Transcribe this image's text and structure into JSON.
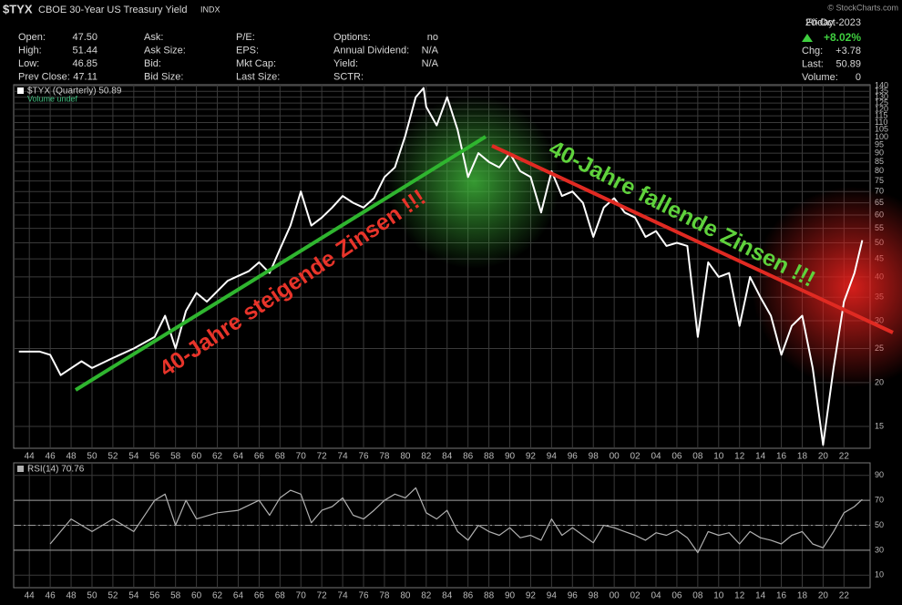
{
  "header": {
    "symbol": "$TYX",
    "name": "CBOE 30-Year US Treasury Yield",
    "exchange": "INDX",
    "watermark": "© StockCharts.com"
  },
  "quote": {
    "columns": [
      [
        {
          "label": "Open:",
          "value": "47.50"
        },
        {
          "label": "High:",
          "value": "51.44"
        },
        {
          "label": "Low:",
          "value": "46.85"
        },
        {
          "label": "Prev Close:",
          "value": "47.11"
        }
      ],
      [
        {
          "label": "Ask:"
        },
        {
          "label": "Ask Size:"
        },
        {
          "label": "Bid:"
        },
        {
          "label": "Bid Size:"
        }
      ],
      [
        {
          "label": "P/E:"
        },
        {
          "label": "EPS:"
        },
        {
          "label": "Mkt Cap:"
        },
        {
          "label": "Last Size:"
        }
      ],
      [
        {
          "label": "Options:",
          "value": "no"
        },
        {
          "label": "Annual Dividend:",
          "value": "N/A"
        },
        {
          "label": "Yield:",
          "value": "N/A"
        },
        {
          "label": "SCTR:"
        }
      ]
    ],
    "day": "Friday",
    "date": "20-Oct-2023",
    "change_pct": "+8.02%",
    "stats": [
      {
        "label": "Chg:",
        "value": "+3.78"
      },
      {
        "label": "Last:",
        "value": "50.89"
      },
      {
        "label": "Volume:",
        "value": "0"
      }
    ]
  },
  "annotations": [
    {
      "text": "40-Jahre steigende Zinsen !!!",
      "color": "#e8342a"
    },
    {
      "text": "40-Jahre fallende Zinsen !!!",
      "color": "#5fd23c"
    }
  ],
  "chart_data": [
    {
      "type": "line",
      "yscale": "log",
      "grid": true,
      "volume_label": "Volume undef",
      "x": [
        1943,
        1945,
        1946,
        1947,
        1949,
        1950,
        1952,
        1954,
        1956,
        1957,
        1958,
        1959,
        1960,
        1961,
        1963,
        1965,
        1966,
        1967,
        1968,
        1969,
        1970,
        1971,
        1972,
        1973,
        1974,
        1975,
        1976,
        1977,
        1978,
        1979,
        1980,
        1981,
        1981.75,
        1982,
        1983,
        1984,
        1985,
        1986,
        1987,
        1988,
        1989,
        1990,
        1991,
        1992,
        1993,
        1994,
        1995,
        1996,
        1997,
        1998,
        1999,
        2000,
        2001,
        2002,
        2003,
        2004,
        2005,
        2006,
        2007,
        2008,
        2009,
        2010,
        2011,
        2012,
        2013,
        2014,
        2015,
        2016,
        2017,
        2018,
        2019,
        2020,
        2021,
        2022,
        2023,
        2023.75
      ],
      "series": [
        {
          "name": "$TYX (Quarterly) 50.89",
          "color": "#ffffff",
          "values": [
            24.5,
            24.5,
            24,
            21,
            23,
            22,
            23.5,
            25,
            27,
            31,
            25,
            32,
            36,
            34,
            39,
            41.5,
            44,
            41,
            48,
            56,
            70,
            56,
            59,
            63,
            68,
            65,
            63,
            67,
            77,
            82,
            101,
            130,
            138,
            122,
            108,
            130,
            105,
            77,
            90,
            85,
            82,
            90,
            80,
            77,
            61,
            80,
            68,
            70,
            65,
            52,
            63,
            67,
            61,
            59,
            52,
            54,
            49,
            50,
            49,
            27,
            44,
            40,
            41,
            29,
            40,
            35,
            31,
            24,
            29,
            31,
            22,
            13.3,
            22,
            34,
            41,
            50.89
          ]
        }
      ],
      "xlim": [
        1942.5,
        2024.5
      ],
      "xticks": [
        {
          "value": 1944,
          "label": "44"
        },
        {
          "value": 1946,
          "label": "46"
        },
        {
          "value": 1948,
          "label": "48"
        },
        {
          "value": 1950,
          "label": "50"
        },
        {
          "value": 1952,
          "label": "52"
        },
        {
          "value": 1954,
          "label": "54"
        },
        {
          "value": 1956,
          "label": "56"
        },
        {
          "value": 1958,
          "label": "58"
        },
        {
          "value": 1960,
          "label": "60"
        },
        {
          "value": 1962,
          "label": "62"
        },
        {
          "value": 1964,
          "label": "64"
        },
        {
          "value": 1966,
          "label": "66"
        },
        {
          "value": 1968,
          "label": "68"
        },
        {
          "value": 1970,
          "label": "70"
        },
        {
          "value": 1972,
          "label": "72"
        },
        {
          "value": 1974,
          "label": "74"
        },
        {
          "value": 1976,
          "label": "76"
        },
        {
          "value": 1978,
          "label": "78"
        },
        {
          "value": 1980,
          "label": "80"
        },
        {
          "value": 1982,
          "label": "82"
        },
        {
          "value": 1984,
          "label": "84"
        },
        {
          "value": 1986,
          "label": "86"
        },
        {
          "value": 1988,
          "label": "88"
        },
        {
          "value": 1990,
          "label": "90"
        },
        {
          "value": 1992,
          "label": "92"
        },
        {
          "value": 1994,
          "label": "94"
        },
        {
          "value": 1996,
          "label": "96"
        },
        {
          "value": 1998,
          "label": "98"
        },
        {
          "value": 2000,
          "label": "00"
        },
        {
          "value": 2002,
          "label": "02"
        },
        {
          "value": 2004,
          "label": "04"
        },
        {
          "value": 2006,
          "label": "06"
        },
        {
          "value": 2008,
          "label": "08"
        },
        {
          "value": 2010,
          "label": "10"
        },
        {
          "value": 2012,
          "label": "12"
        },
        {
          "value": 2014,
          "label": "14"
        },
        {
          "value": 2016,
          "label": "16"
        },
        {
          "value": 2018,
          "label": "18"
        },
        {
          "value": 2020,
          "label": "20"
        },
        {
          "value": 2022,
          "label": "22"
        }
      ],
      "ylim": [
        13,
        141
      ],
      "yticks": [
        15,
        20,
        25,
        30,
        35,
        40,
        45,
        50,
        55,
        60,
        65,
        70,
        75,
        80,
        85,
        90,
        95,
        100,
        105,
        110,
        115,
        120,
        125,
        130,
        135,
        140
      ]
    },
    {
      "type": "line",
      "grid": true,
      "x": [
        1946,
        1948,
        1950,
        1952,
        1954,
        1956,
        1957,
        1958,
        1959,
        1960,
        1962,
        1964,
        1966,
        1967,
        1968,
        1969,
        1970,
        1971,
        1972,
        1973,
        1974,
        1975,
        1976,
        1977,
        1978,
        1979,
        1980,
        1981,
        1982,
        1983,
        1984,
        1985,
        1986,
        1987,
        1988,
        1989,
        1990,
        1991,
        1992,
        1993,
        1994,
        1995,
        1996,
        1997,
        1998,
        1999,
        2000,
        2001,
        2002,
        2003,
        2004,
        2005,
        2006,
        2007,
        2008,
        2009,
        2010,
        2011,
        2012,
        2013,
        2014,
        2015,
        2016,
        2017,
        2018,
        2019,
        2020,
        2021,
        2022,
        2023,
        2023.75
      ],
      "series": [
        {
          "name": "RSI(14) 70.76",
          "color": "#b0b0b0",
          "values": [
            35,
            55,
            45,
            55,
            45,
            70,
            75,
            50,
            70,
            55,
            60,
            62,
            70,
            58,
            72,
            78,
            75,
            52,
            62,
            65,
            72,
            58,
            55,
            62,
            70,
            75,
            72,
            80,
            60,
            55,
            62,
            45,
            38,
            50,
            45,
            42,
            48,
            40,
            42,
            38,
            55,
            42,
            48,
            42,
            36,
            50,
            48,
            45,
            42,
            38,
            44,
            42,
            46,
            40,
            28,
            45,
            42,
            44,
            35,
            45,
            40,
            38,
            35,
            42,
            45,
            35,
            32,
            45,
            60,
            65,
            70.76
          ]
        }
      ],
      "levels": [
        30,
        50,
        70
      ],
      "xlim": [
        1942.5,
        2024.5
      ],
      "xticks": [
        {
          "value": 1944,
          "label": "44"
        },
        {
          "value": 1946,
          "label": "46"
        },
        {
          "value": 1948,
          "label": "48"
        },
        {
          "value": 1950,
          "label": "50"
        },
        {
          "value": 1952,
          "label": "52"
        },
        {
          "value": 1954,
          "label": "54"
        },
        {
          "value": 1956,
          "label": "56"
        },
        {
          "value": 1958,
          "label": "58"
        },
        {
          "value": 1960,
          "label": "60"
        },
        {
          "value": 1962,
          "label": "62"
        },
        {
          "value": 1964,
          "label": "64"
        },
        {
          "value": 1966,
          "label": "66"
        },
        {
          "value": 1968,
          "label": "68"
        },
        {
          "value": 1970,
          "label": "70"
        },
        {
          "value": 1972,
          "label": "72"
        },
        {
          "value": 1974,
          "label": "74"
        },
        {
          "value": 1976,
          "label": "76"
        },
        {
          "value": 1978,
          "label": "78"
        },
        {
          "value": 1980,
          "label": "80"
        },
        {
          "value": 1982,
          "label": "82"
        },
        {
          "value": 1984,
          "label": "84"
        },
        {
          "value": 1986,
          "label": "86"
        },
        {
          "value": 1988,
          "label": "88"
        },
        {
          "value": 1990,
          "label": "90"
        },
        {
          "value": 1992,
          "label": "92"
        },
        {
          "value": 1994,
          "label": "94"
        },
        {
          "value": 1996,
          "label": "96"
        },
        {
          "value": 1998,
          "label": "98"
        },
        {
          "value": 2000,
          "label": "00"
        },
        {
          "value": 2002,
          "label": "02"
        },
        {
          "value": 2004,
          "label": "04"
        },
        {
          "value": 2006,
          "label": "06"
        },
        {
          "value": 2008,
          "label": "08"
        },
        {
          "value": 2010,
          "label": "10"
        },
        {
          "value": 2012,
          "label": "12"
        },
        {
          "value": 2014,
          "label": "14"
        },
        {
          "value": 2016,
          "label": "16"
        },
        {
          "value": 2018,
          "label": "18"
        },
        {
          "value": 2020,
          "label": "20"
        },
        {
          "value": 2022,
          "label": "22"
        }
      ],
      "ylim": [
        0,
        100
      ],
      "yticks": [
        10,
        30,
        50,
        70,
        90
      ]
    }
  ]
}
